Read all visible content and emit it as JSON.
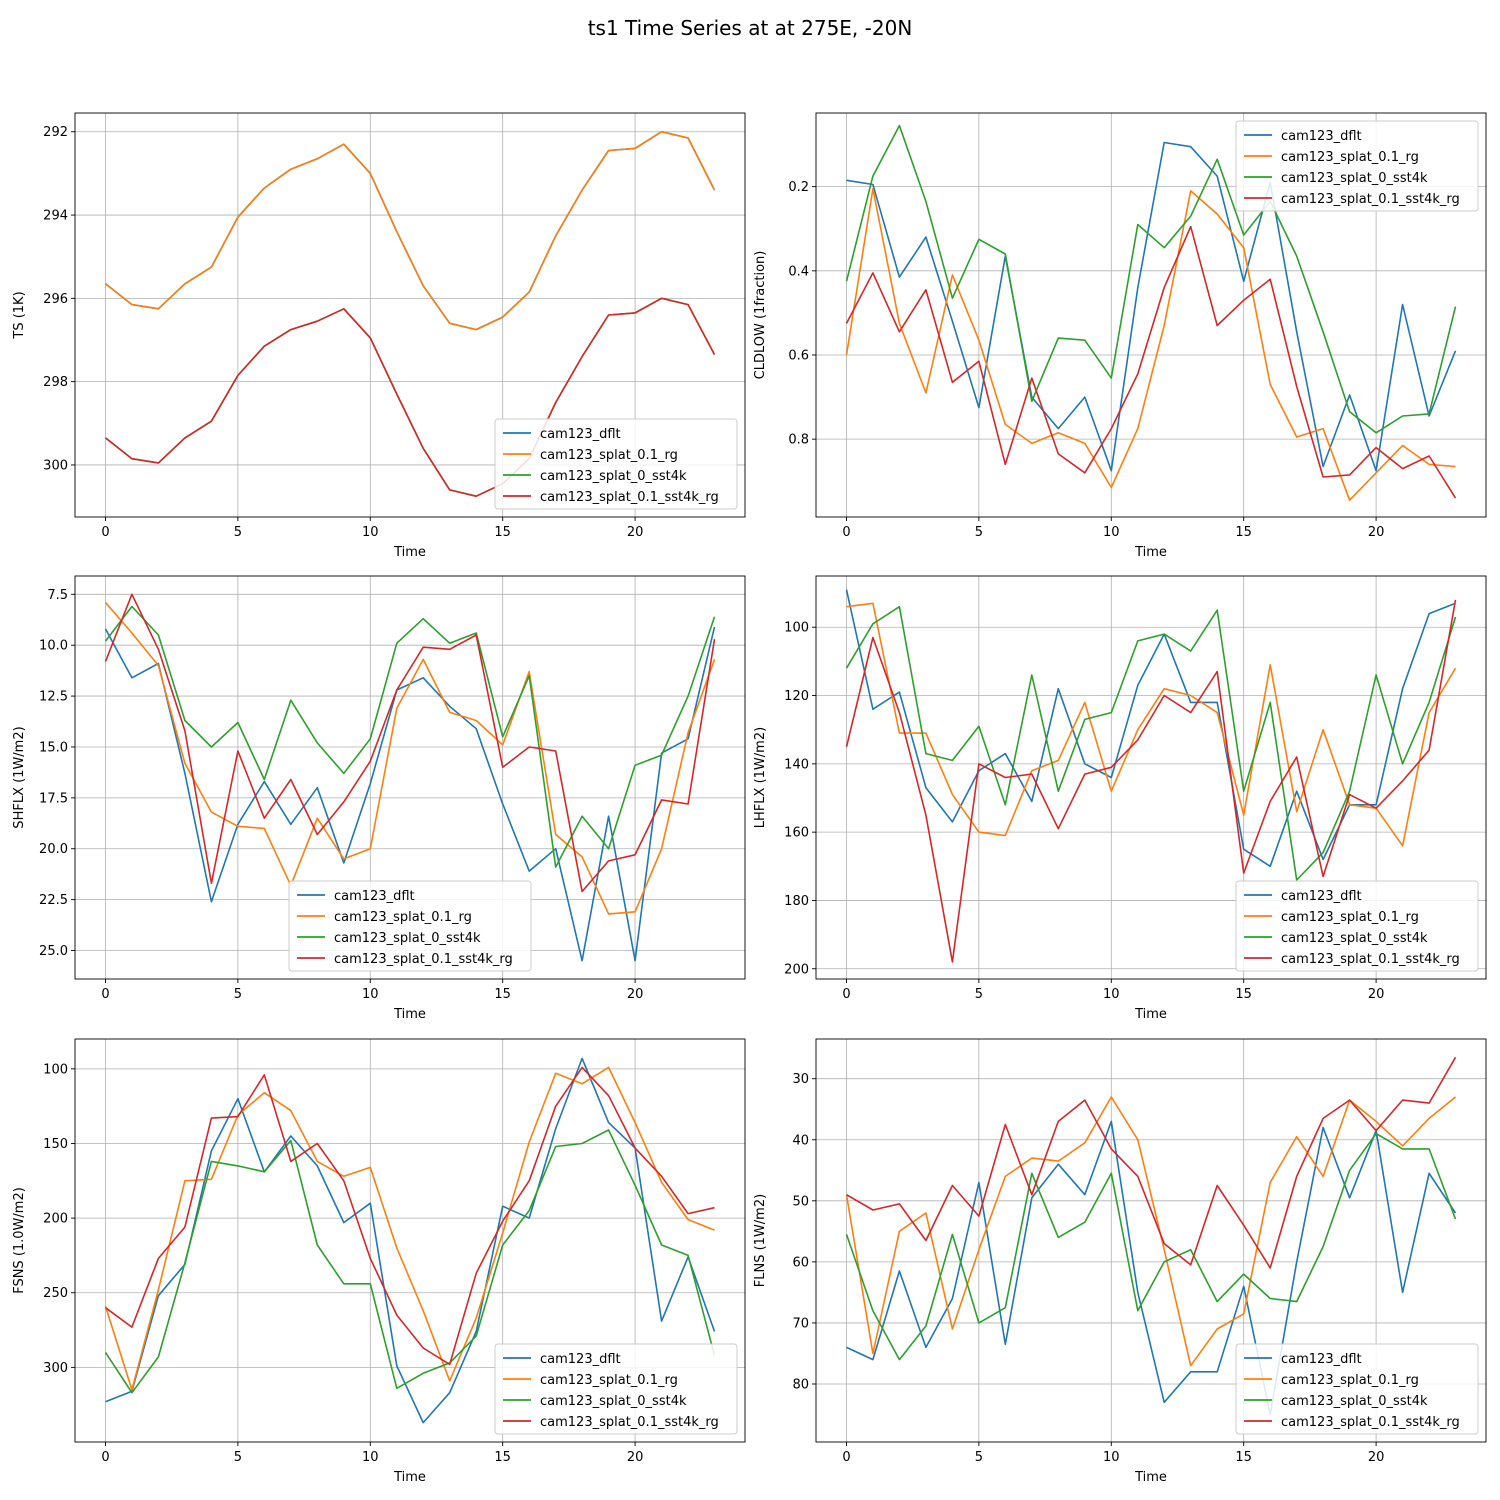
{
  "figure": {
    "title": "ts1 Time Series at at 275E, -20N"
  },
  "chart_data": [
    {
      "type": "line",
      "id": "ts",
      "ylabel": "TS (1K)",
      "xlabel": "Time",
      "invert_y": true,
      "ylim": [
        301.25,
        291.55
      ],
      "xlim": [
        -1.15,
        24.15
      ],
      "xticks": [
        0,
        5,
        10,
        15,
        20
      ],
      "yticks": [
        292,
        294,
        296,
        298,
        300
      ],
      "ytick_labels": [
        "292",
        "294",
        "296",
        "298",
        "300"
      ],
      "legend_loc": "lower right",
      "x": [
        0,
        1,
        2,
        3,
        4,
        5,
        6,
        7,
        8,
        9,
        10,
        11,
        12,
        13,
        14,
        15,
        16,
        17,
        18,
        19,
        20,
        21,
        22,
        23
      ],
      "series": [
        {
          "name": "cam123_dflt",
          "color": "#1f77b4",
          "values": [
            295.65,
            296.15,
            296.25,
            295.65,
            295.25,
            294.05,
            293.35,
            292.9,
            292.65,
            292.3,
            293.0,
            294.4,
            295.7,
            296.6,
            296.75,
            296.45,
            295.85,
            294.5,
            293.4,
            292.45,
            292.4,
            292.0,
            292.15,
            293.4
          ]
        },
        {
          "name": "cam123_splat_0.1_rg",
          "color": "#ff7f0e",
          "values": [
            295.65,
            296.15,
            296.25,
            295.65,
            295.25,
            294.05,
            293.35,
            292.9,
            292.65,
            292.3,
            293.0,
            294.4,
            295.7,
            296.6,
            296.75,
            296.45,
            295.85,
            294.5,
            293.4,
            292.45,
            292.4,
            292.0,
            292.15,
            293.4
          ]
        },
        {
          "name": "cam123_splat_0_sst4k",
          "color": "#2ca02c",
          "values": [
            299.35,
            299.85,
            299.95,
            299.35,
            298.95,
            297.85,
            297.15,
            296.75,
            296.55,
            296.25,
            296.95,
            298.3,
            299.6,
            300.6,
            300.75,
            300.45,
            299.85,
            298.5,
            297.4,
            296.4,
            296.35,
            296.0,
            296.15,
            297.35
          ]
        },
        {
          "name": "cam123_splat_0.1_sst4k_rg",
          "color": "#d62728",
          "values": [
            299.35,
            299.85,
            299.95,
            299.35,
            298.95,
            297.85,
            297.15,
            296.75,
            296.55,
            296.25,
            296.95,
            298.3,
            299.6,
            300.6,
            300.75,
            300.45,
            299.85,
            298.5,
            297.4,
            296.4,
            296.35,
            296.0,
            296.15,
            297.35
          ]
        }
      ]
    },
    {
      "type": "line",
      "id": "cldlow",
      "ylabel": "CLDLOW (1fraction)",
      "xlabel": "Time",
      "invert_y": true,
      "ylim": [
        0.985,
        0.025
      ],
      "xlim": [
        -1.15,
        24.15
      ],
      "xticks": [
        0,
        5,
        10,
        15,
        20
      ],
      "yticks": [
        0.2,
        0.4,
        0.6,
        0.8
      ],
      "ytick_labels": [
        "0.2",
        "0.4",
        "0.6",
        "0.8"
      ],
      "legend_loc": "upper right",
      "x": [
        0,
        1,
        2,
        3,
        4,
        5,
        6,
        7,
        8,
        9,
        10,
        11,
        12,
        13,
        14,
        15,
        16,
        17,
        18,
        19,
        20,
        21,
        22,
        23
      ],
      "series": [
        {
          "name": "cam123_dflt",
          "color": "#1f77b4",
          "values": [
            0.185,
            0.195,
            0.415,
            0.32,
            0.52,
            0.725,
            0.365,
            0.7,
            0.775,
            0.7,
            0.875,
            0.44,
            0.095,
            0.105,
            0.175,
            0.425,
            0.19,
            0.545,
            0.865,
            0.695,
            0.875,
            0.48,
            0.745,
            0.59
          ]
        },
        {
          "name": "cam123_splat_0.1_rg",
          "color": "#ff7f0e",
          "values": [
            0.6,
            0.205,
            0.525,
            0.69,
            0.41,
            0.565,
            0.765,
            0.81,
            0.785,
            0.81,
            0.915,
            0.775,
            0.53,
            0.21,
            0.265,
            0.345,
            0.67,
            0.795,
            0.775,
            0.945,
            0.88,
            0.815,
            0.86,
            0.865
          ]
        },
        {
          "name": "cam123_splat_0_sst4k",
          "color": "#2ca02c",
          "values": [
            0.425,
            0.175,
            0.055,
            0.235,
            0.465,
            0.325,
            0.36,
            0.71,
            0.56,
            0.565,
            0.655,
            0.29,
            0.345,
            0.27,
            0.135,
            0.315,
            0.235,
            0.365,
            0.545,
            0.735,
            0.785,
            0.745,
            0.74,
            0.485
          ]
        },
        {
          "name": "cam123_splat_0.1_sst4k_rg",
          "color": "#d62728",
          "values": [
            0.525,
            0.405,
            0.545,
            0.445,
            0.665,
            0.615,
            0.86,
            0.655,
            0.835,
            0.88,
            0.775,
            0.645,
            0.44,
            0.295,
            0.53,
            0.47,
            0.42,
            0.675,
            0.89,
            0.885,
            0.82,
            0.87,
            0.84,
            0.94
          ]
        }
      ]
    },
    {
      "type": "line",
      "id": "shflx",
      "ylabel": "SHFLX (1W/m2)",
      "xlabel": "Time",
      "invert_y": true,
      "ylim": [
        26.4,
        6.6
      ],
      "xlim": [
        -1.15,
        24.15
      ],
      "xticks": [
        0,
        5,
        10,
        15,
        20
      ],
      "yticks": [
        7.5,
        10.0,
        12.5,
        15.0,
        17.5,
        20.0,
        22.5,
        25.0
      ],
      "ytick_labels": [
        "7.5",
        "10.0",
        "12.5",
        "15.0",
        "17.5",
        "20.0",
        "22.5",
        "25.0"
      ],
      "legend_loc": "lower center",
      "x": [
        0,
        1,
        2,
        3,
        4,
        5,
        6,
        7,
        8,
        9,
        10,
        11,
        12,
        13,
        14,
        15,
        16,
        17,
        18,
        19,
        20,
        21,
        22,
        23
      ],
      "series": [
        {
          "name": "cam123_dflt",
          "color": "#1f77b4",
          "values": [
            9.2,
            11.6,
            10.9,
            16.3,
            22.6,
            18.8,
            16.7,
            18.8,
            17.0,
            20.7,
            16.8,
            12.2,
            11.6,
            13.0,
            14.1,
            17.8,
            21.1,
            20.0,
            25.5,
            18.4,
            25.5,
            15.3,
            14.6,
            9.1
          ]
        },
        {
          "name": "cam123_splat_0.1_rg",
          "color": "#ff7f0e",
          "values": [
            7.9,
            9.4,
            11.0,
            15.8,
            18.2,
            18.9,
            19.0,
            21.8,
            18.5,
            20.5,
            20.0,
            13.1,
            10.7,
            13.3,
            13.7,
            14.9,
            11.3,
            19.3,
            20.4,
            23.2,
            23.1,
            20.0,
            14.3,
            10.7
          ]
        },
        {
          "name": "cam123_splat_0_sst4k",
          "color": "#2ca02c",
          "values": [
            9.8,
            8.1,
            9.5,
            13.7,
            15.0,
            13.8,
            16.6,
            12.7,
            14.8,
            16.3,
            14.6,
            9.9,
            8.7,
            9.9,
            9.4,
            14.5,
            11.5,
            20.9,
            18.4,
            20.0,
            15.9,
            15.4,
            12.5,
            8.6
          ]
        },
        {
          "name": "cam123_splat_0.1_sst4k_rg",
          "color": "#d62728",
          "values": [
            10.8,
            7.5,
            10.2,
            14.2,
            21.7,
            15.2,
            18.5,
            16.6,
            19.3,
            17.7,
            15.7,
            12.2,
            10.1,
            10.2,
            9.5,
            16.0,
            15.0,
            15.2,
            22.1,
            20.6,
            20.3,
            17.6,
            17.8,
            9.7
          ]
        }
      ]
    },
    {
      "type": "line",
      "id": "lhflx",
      "ylabel": "LHFLX (1W/m2)",
      "xlabel": "Time",
      "invert_y": true,
      "ylim": [
        203.0,
        85.0
      ],
      "xlim": [
        -1.15,
        24.15
      ],
      "xticks": [
        0,
        5,
        10,
        15,
        20
      ],
      "yticks": [
        100,
        120,
        140,
        160,
        180,
        200
      ],
      "ytick_labels": [
        "100",
        "120",
        "140",
        "160",
        "180",
        "200"
      ],
      "legend_loc": "lower right",
      "x": [
        0,
        1,
        2,
        3,
        4,
        5,
        6,
        7,
        8,
        9,
        10,
        11,
        12,
        13,
        14,
        15,
        16,
        17,
        18,
        19,
        20,
        21,
        22,
        23
      ],
      "series": [
        {
          "name": "cam123_dflt",
          "color": "#1f77b4",
          "values": [
            89,
            124,
            119,
            147,
            157,
            142,
            137,
            151,
            118,
            140,
            144,
            117,
            102,
            122,
            122,
            165,
            170,
            148,
            168,
            152,
            152,
            118,
            96,
            93
          ]
        },
        {
          "name": "cam123_splat_0.1_rg",
          "color": "#ff7f0e",
          "values": [
            94,
            93,
            131,
            131,
            149,
            160,
            161,
            142,
            139,
            122,
            148,
            130,
            118,
            120,
            125,
            155,
            111,
            154,
            130,
            152,
            153,
            164,
            125,
            112
          ]
        },
        {
          "name": "cam123_splat_0_sst4k",
          "color": "#2ca02c",
          "values": [
            112,
            99,
            94,
            137,
            139,
            129,
            152,
            114,
            148,
            127,
            125,
            104,
            102,
            107,
            95,
            148,
            122,
            174,
            166,
            148,
            114,
            140,
            122,
            97
          ]
        },
        {
          "name": "cam123_splat_0.1_sst4k_rg",
          "color": "#d62728",
          "values": [
            135,
            103,
            125,
            155,
            198,
            140,
            144,
            143,
            159,
            143,
            141,
            133,
            120,
            125,
            113,
            172,
            151,
            138,
            173,
            149,
            153,
            145,
            136,
            92
          ]
        }
      ]
    },
    {
      "type": "line",
      "id": "fsns",
      "ylabel": "FSNS (1.0W/m2)",
      "xlabel": "Time",
      "invert_y": true,
      "ylim": [
        350.0,
        80.0
      ],
      "xlim": [
        -1.15,
        24.15
      ],
      "xticks": [
        0,
        5,
        10,
        15,
        20
      ],
      "yticks": [
        100,
        150,
        200,
        250,
        300
      ],
      "ytick_labels": [
        "100",
        "150",
        "200",
        "250",
        "300"
      ],
      "legend_loc": "lower right",
      "x": [
        0,
        1,
        2,
        3,
        4,
        5,
        6,
        7,
        8,
        9,
        10,
        11,
        12,
        13,
        14,
        15,
        16,
        17,
        18,
        19,
        20,
        21,
        22,
        23
      ],
      "series": [
        {
          "name": "cam123_dflt",
          "color": "#1f77b4",
          "values": [
            323,
            316,
            252,
            231,
            155,
            120,
            169,
            145,
            165,
            203,
            190,
            299,
            337,
            317,
            276,
            192,
            200,
            140,
            93,
            136,
            153,
            269,
            226,
            276
          ]
        },
        {
          "name": "cam123_splat_0.1_rg",
          "color": "#ff7f0e",
          "values": [
            259,
            315,
            248,
            175,
            174,
            131,
            116,
            128,
            162,
            172,
            166,
            220,
            262,
            309,
            267,
            210,
            149,
            103,
            110,
            99,
            136,
            176,
            201,
            208
          ]
        },
        {
          "name": "cam123_splat_0_sst4k",
          "color": "#2ca02c",
          "values": [
            290,
            317,
            293,
            230,
            162,
            165,
            169,
            148,
            218,
            244,
            244,
            314,
            304,
            297,
            279,
            218,
            195,
            152,
            150,
            141,
            178,
            218,
            225,
            292
          ]
        },
        {
          "name": "cam123_splat_0.1_sst4k_rg",
          "color": "#d62728",
          "values": [
            260,
            273,
            227,
            206,
            133,
            132,
            104,
            162,
            150,
            175,
            227,
            265,
            287,
            298,
            237,
            202,
            175,
            125,
            99,
            118,
            153,
            172,
            197,
            193
          ]
        }
      ]
    },
    {
      "type": "line",
      "id": "flns",
      "ylabel": "FLNS (1W/m2)",
      "xlabel": "Time",
      "invert_y": true,
      "ylim": [
        89.5,
        23.5
      ],
      "xlim": [
        -1.15,
        24.15
      ],
      "xticks": [
        0,
        5,
        10,
        15,
        20
      ],
      "yticks": [
        30,
        40,
        50,
        60,
        70,
        80
      ],
      "ytick_labels": [
        "30",
        "40",
        "50",
        "60",
        "70",
        "80"
      ],
      "legend_loc": "lower right",
      "x": [
        0,
        1,
        2,
        3,
        4,
        5,
        6,
        7,
        8,
        9,
        10,
        11,
        12,
        13,
        14,
        15,
        16,
        17,
        18,
        19,
        20,
        21,
        22,
        23
      ],
      "series": [
        {
          "name": "cam123_dflt",
          "color": "#1f77b4",
          "values": [
            74,
            76,
            61.5,
            74,
            66,
            47,
            73.5,
            49.5,
            44,
            49,
            37,
            65,
            83,
            78,
            78,
            64,
            85,
            60,
            38,
            49.5,
            38.5,
            65,
            45.5,
            52
          ]
        },
        {
          "name": "cam123_splat_0.1_rg",
          "color": "#ff7f0e",
          "values": [
            49,
            75,
            55,
            52,
            71,
            58,
            46,
            43,
            43.5,
            40.5,
            33,
            40,
            58,
            77,
            71,
            68.5,
            47,
            39.5,
            46,
            33.5,
            37,
            41,
            36.5,
            33
          ]
        },
        {
          "name": "cam123_splat_0_sst4k",
          "color": "#2ca02c",
          "values": [
            55.5,
            68,
            76,
            70.5,
            55.5,
            70,
            67.5,
            45.5,
            56,
            53.5,
            45.5,
            68,
            60,
            58,
            66.5,
            62,
            66,
            66.5,
            57.5,
            45,
            39,
            41.5,
            41.5,
            53
          ]
        },
        {
          "name": "cam123_splat_0.1_sst4k_rg",
          "color": "#d62728",
          "values": [
            49,
            51.5,
            50.5,
            56.5,
            47.5,
            52.5,
            37.5,
            49,
            37,
            33.5,
            41.5,
            46,
            57,
            60.5,
            47.5,
            54,
            61,
            46,
            36.5,
            33.5,
            38.5,
            33.5,
            34,
            26.5
          ]
        }
      ]
    }
  ]
}
